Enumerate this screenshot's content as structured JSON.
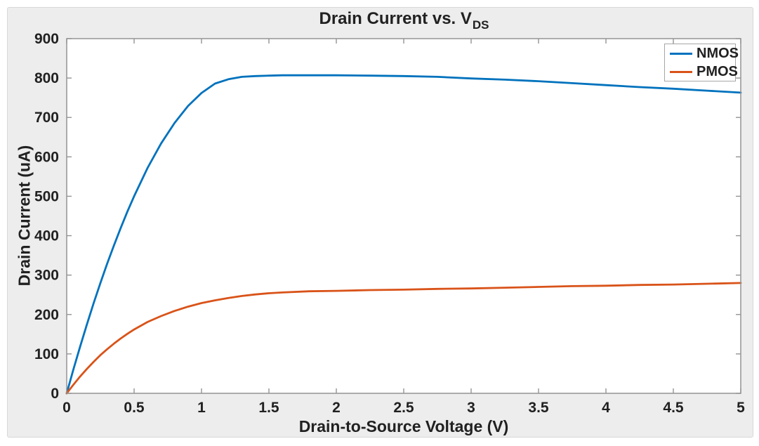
{
  "figure": {
    "title_main": "Drain Current vs. V",
    "title_subscript": "DS",
    "background_color": "#ededed",
    "plot_background_color": "#ffffff",
    "axis_color": "#939393",
    "text_color": "#212121"
  },
  "legend": {
    "position": "top-right",
    "entries": [
      "NMOS",
      "PMOS"
    ]
  },
  "chart_data": {
    "type": "line",
    "title": "Drain Current vs. V_DS",
    "xlabel": "Drain-to-Source Voltage (V)",
    "ylabel": "Drain Current (uA)",
    "xlim": [
      0,
      5
    ],
    "ylim": [
      0,
      900
    ],
    "x_ticks": [
      0,
      0.5,
      1,
      1.5,
      2,
      2.5,
      3,
      3.5,
      4,
      4.5,
      5
    ],
    "x_tick_labels": [
      "0",
      "0.5",
      "1",
      "1.5",
      "2",
      "2.5",
      "3",
      "3.5",
      "4",
      "4.5",
      "5"
    ],
    "y_ticks": [
      0,
      100,
      200,
      300,
      400,
      500,
      600,
      700,
      800,
      900
    ],
    "y_tick_labels": [
      "0",
      "100",
      "200",
      "300",
      "400",
      "500",
      "600",
      "700",
      "800",
      "900"
    ],
    "grid": false,
    "legend_position": "top-right",
    "series": [
      {
        "name": "NMOS",
        "color": "#0072BD",
        "x": [
          0,
          0.05,
          0.1,
          0.15,
          0.2,
          0.25,
          0.3,
          0.35,
          0.4,
          0.45,
          0.5,
          0.6,
          0.7,
          0.8,
          0.9,
          1.0,
          1.1,
          1.2,
          1.3,
          1.4,
          1.5,
          1.6,
          1.8,
          2.0,
          2.25,
          2.5,
          2.75,
          3.0,
          3.25,
          3.5,
          3.75,
          4.0,
          4.25,
          4.5,
          4.75,
          5.0
        ],
        "y": [
          0,
          61,
          119,
          175,
          229,
          280,
          329,
          375,
          419,
          461,
          500,
          572,
          634,
          686,
          729,
          762,
          786,
          797,
          803,
          805,
          806,
          807,
          807,
          807,
          806,
          805,
          803,
          799,
          796,
          792,
          787,
          782,
          777,
          773,
          768,
          763
        ]
      },
      {
        "name": "PMOS",
        "color": "#D95319",
        "x": [
          0,
          0.05,
          0.1,
          0.15,
          0.2,
          0.25,
          0.3,
          0.35,
          0.4,
          0.45,
          0.5,
          0.6,
          0.7,
          0.8,
          0.9,
          1.0,
          1.1,
          1.2,
          1.3,
          1.4,
          1.5,
          1.6,
          1.8,
          2.0,
          2.25,
          2.5,
          2.75,
          3.0,
          3.25,
          3.5,
          3.75,
          4.0,
          4.25,
          4.5,
          4.75,
          5.0
        ],
        "y": [
          0,
          22,
          43,
          62,
          80,
          97,
          112,
          126,
          139,
          151,
          162,
          181,
          196,
          209,
          220,
          229,
          236,
          242,
          247,
          251,
          254,
          256,
          259,
          260,
          262,
          263,
          265,
          266,
          268,
          270,
          272,
          273,
          275,
          276,
          278,
          280
        ]
      }
    ]
  }
}
